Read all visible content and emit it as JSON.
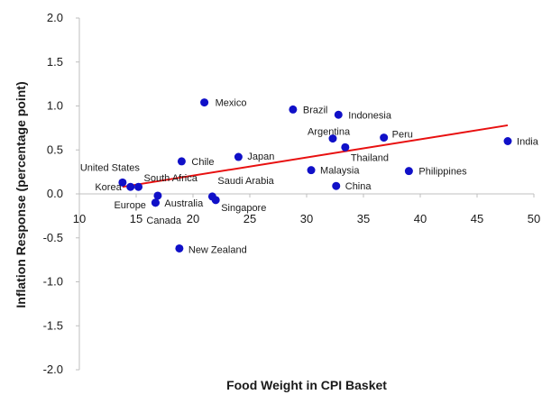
{
  "chart_data": {
    "type": "scatter",
    "xlabel": "Food Weight in CPI Basket",
    "ylabel": "Inflation Response (percentage point)",
    "xlim": [
      10,
      50
    ],
    "ylim": [
      -2.0,
      2.0
    ],
    "xticks": [
      "10",
      "15",
      "20",
      "25",
      "30",
      "35",
      "40",
      "45",
      "50"
    ],
    "yticks": [
      "2.0",
      "1.5",
      "1.0",
      "0.5",
      "0.0",
      "-0.5",
      "-1.0",
      "-1.5",
      "-2.0"
    ],
    "grid": false,
    "colors": {
      "points": "#1010c8",
      "trend": "#e81010",
      "axis": "#bfbfbf"
    },
    "points": [
      {
        "label": "Mexico",
        "x": 21.0,
        "y": 1.04
      },
      {
        "label": "Brazil",
        "x": 28.8,
        "y": 0.96
      },
      {
        "label": "Indonesia",
        "x": 32.8,
        "y": 0.9
      },
      {
        "label": "Argentina",
        "x": 32.3,
        "y": 0.63
      },
      {
        "label": "Peru",
        "x": 36.8,
        "y": 0.64
      },
      {
        "label": "Thailand",
        "x": 33.4,
        "y": 0.53
      },
      {
        "label": "India",
        "x": 47.7,
        "y": 0.6
      },
      {
        "label": "Chile",
        "x": 19.0,
        "y": 0.37
      },
      {
        "label": "Japan",
        "x": 24.0,
        "y": 0.42
      },
      {
        "label": "Malaysia",
        "x": 30.4,
        "y": 0.27
      },
      {
        "label": "Philippines",
        "x": 39.0,
        "y": 0.26
      },
      {
        "label": "United States",
        "x": 13.8,
        "y": 0.13
      },
      {
        "label": "China",
        "x": 32.6,
        "y": 0.09
      },
      {
        "label": "Korea",
        "x": 14.5,
        "y": 0.08
      },
      {
        "label": "South Africa",
        "x": 15.2,
        "y": 0.08
      },
      {
        "label": "Europe",
        "x": 16.9,
        "y": -0.02
      },
      {
        "label": "Australia",
        "x": 16.7,
        "y": -0.1
      },
      {
        "label": "Saudi Arabia",
        "x": 21.7,
        "y": -0.03
      },
      {
        "label": "Singapore",
        "x": 22.0,
        "y": -0.07
      },
      {
        "label": "Canada",
        "x": 16.7,
        "y": -0.1
      },
      {
        "label": "New Zealand",
        "x": 18.8,
        "y": -0.62
      }
    ],
    "trendline": {
      "x": [
        13.8,
        47.7
      ],
      "y": [
        0.08,
        0.78
      ]
    }
  }
}
